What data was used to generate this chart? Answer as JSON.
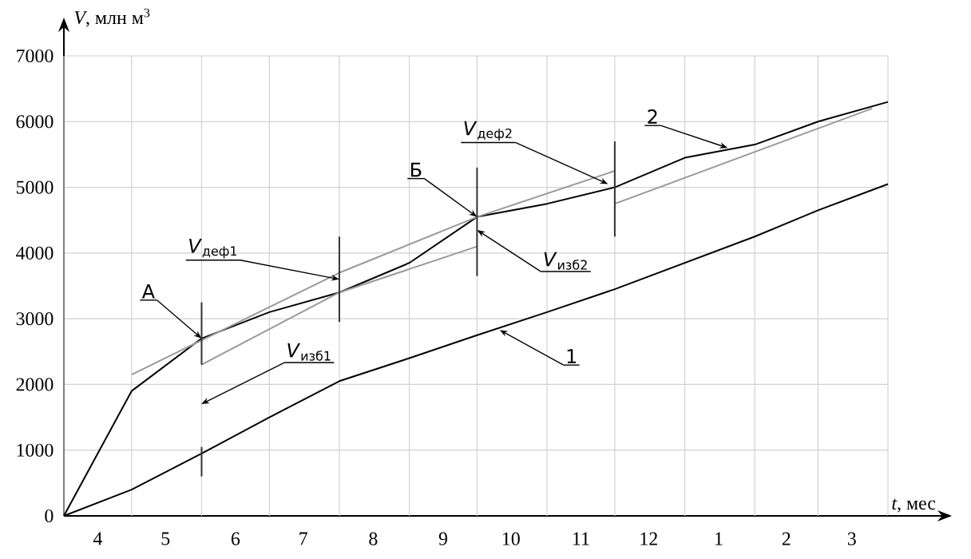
{
  "chart_data": {
    "type": "line",
    "xlabel": "*t*, мес",
    "ylabel": "*V*, млн м$^{3}$",
    "x": [
      "2000-04-01",
      "2000-05-01",
      "2000-06-01",
      "2000-07-01",
      "2000-08-01",
      "2000-09-01",
      "2000-10-01",
      "2000-11-01",
      "2000-12-01",
      "2001-01-01",
      "2001-02-01",
      "2001-03-01",
      "2001-04-01"
    ],
    "xlim": [
      "2000-04-01",
      "2001-04-01"
    ],
    "ylim": [
      0,
      7000
    ],
    "xticks": [
      {
        "value": "2000-04-01",
        "label": null
      },
      {
        "value": "2000-04-16",
        "label": "4"
      },
      {
        "value": "2000-05-01",
        "label": null
      },
      {
        "value": "2000-05-16",
        "label": "5"
      },
      {
        "value": "2000-06-01",
        "label": null
      },
      {
        "value": "2000-06-16",
        "label": "6"
      },
      {
        "value": "2000-07-01",
        "label": null
      },
      {
        "value": "2000-07-16",
        "label": "7"
      },
      {
        "value": "2000-08-01",
        "label": null
      },
      {
        "value": "2000-08-16",
        "label": "8"
      },
      {
        "value": "2000-09-01",
        "label": null
      },
      {
        "value": "2000-09-16",
        "label": "9"
      },
      {
        "value": "2000-10-01",
        "label": null
      },
      {
        "value": "2000-10-16",
        "label": "10"
      },
      {
        "value": "2000-11-01",
        "label": null
      },
      {
        "value": "2000-11-16",
        "label": "11"
      },
      {
        "value": "2000-12-01",
        "label": null
      },
      {
        "value": "2000-12-16",
        "label": "12"
      },
      {
        "value": "2001-01-01",
        "label": null
      },
      {
        "value": "2001-01-16",
        "label": "1"
      },
      {
        "value": "2001-02-01",
        "label": null
      },
      {
        "value": "2001-02-15",
        "label": "2"
      },
      {
        "value": "2001-03-01",
        "label": null
      },
      {
        "value": "2001-03-16",
        "label": "3"
      },
      {
        "value": "2001-04-01",
        "label": null
      }
    ],
    "yticks": [
      0,
      1000,
      2000,
      3000,
      4000,
      5000,
      6000,
      7000
    ],
    "grid": true,
    "marker": "none",
    "line_style": "solid",
    "series": [
      {
        "color": "#000000",
        "values": [
          0,
          1900,
          2700,
          3100,
          3400,
          3850,
          4550,
          4750,
          5000,
          5450,
          5650,
          6000,
          6300
        ]
      },
      {
        "color": "#000000",
        "values": [
          0,
          400,
          950,
          1500,
          2050,
          2400,
          2750,
          3100,
          3450,
          3850,
          4250,
          4650,
          5050
        ]
      },
      {
        "color": "#999999",
        "x": [
          "2000-05-01",
          "2000-08-01",
          "2000-10-01",
          "2000-12-01"
        ],
        "values": [
          2150,
          3700,
          4550,
          5250
        ]
      },
      {
        "color": "#999999",
        "x": [
          "2000-06-01",
          "2000-08-01",
          "2000-10-01"
        ],
        "values": [
          2300,
          3400,
          4100
        ]
      },
      {
        "color": "#999999",
        "x": [
          "2000-12-01",
          "2001-03-25"
        ],
        "values": [
          4750,
          6200
        ]
      },
      {
        "color": "#333333",
        "x": [
          "2000-06-01",
          "2000-06-01"
        ],
        "values": [
          3250,
          2300
        ]
      },
      {
        "color": "#333333",
        "x": [
          "2000-06-01",
          "2000-06-01"
        ],
        "values": [
          1050,
          600
        ]
      },
      {
        "color": "#333333",
        "x": [
          "2000-08-01",
          "2000-08-01"
        ],
        "values": [
          4250,
          2950
        ]
      },
      {
        "color": "#333333",
        "x": [
          "2000-10-01",
          "2000-10-01"
        ],
        "values": [
          5300,
          3650
        ]
      },
      {
        "color": "#333333",
        "x": [
          "2000-12-01",
          "2000-12-01"
        ],
        "values": [
          5700,
          4250
        ]
      }
    ],
    "annotations": [
      {
        "text": "А",
        "x": "2000-06-01",
        "y": 2700
      },
      {
        "text": "Б",
        "x": "2000-10-01",
        "y": 4550
      },
      {
        "text": "1",
        "x": "2000-10-11",
        "y": 2830
      },
      {
        "text": "2",
        "x": "2001-01-20",
        "y": 5600
      },
      {
        "text": "*V*$_{деф1}$",
        "x": "2000-08-01",
        "y": 3600
      },
      "*V*$_{изб1}$",
      {
        "text": "*V*$_{изб2}$",
        "x": "2000-10-01",
        "y": 4350
      },
      {
        "text": "*V*$_{деф2}$",
        "x": "2000-11-28",
        "y": 5050
      }
    ]
  }
}
